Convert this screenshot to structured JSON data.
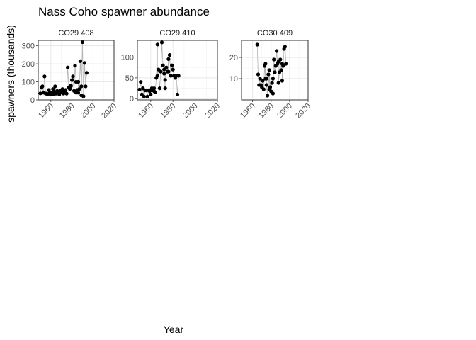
{
  "chart_data": {
    "type": "scatter",
    "title": "Nass Coho spawner abundance",
    "xlabel": "Year",
    "ylabel": "spawners (thousands)",
    "grid": true,
    "connect_points": true,
    "x_ticks": [
      1960,
      1980,
      2000,
      2020
    ],
    "x_range": [
      1948,
      2020
    ],
    "colors": {
      "point": "#000000",
      "line": "#b3b3b3",
      "grid": "#e6e6e6",
      "frame": "#333333"
    },
    "panels": [
      {
        "name": "CO29 408",
        "ylim": [
          0,
          330
        ],
        "y_ticks": [
          0,
          100,
          200,
          300
        ],
        "points": [
          [
            1950,
            36
          ],
          [
            1951,
            68
          ],
          [
            1952,
            75
          ],
          [
            1953,
            40
          ],
          [
            1954,
            130
          ],
          [
            1955,
            35
          ],
          [
            1956,
            35
          ],
          [
            1957,
            30
          ],
          [
            1958,
            55
          ],
          [
            1959,
            40
          ],
          [
            1960,
            30
          ],
          [
            1961,
            40
          ],
          [
            1962,
            30
          ],
          [
            1963,
            45
          ],
          [
            1964,
            35
          ],
          [
            1965,
            35
          ],
          [
            1966,
            50
          ],
          [
            1967,
            40
          ],
          [
            1968,
            30
          ],
          [
            1969,
            50
          ],
          [
            1970,
            45
          ],
          [
            1971,
            60
          ],
          [
            1972,
            35
          ],
          [
            1973,
            50
          ],
          [
            1974,
            40
          ],
          [
            1975,
            35
          ],
          [
            1976,
            180
          ],
          [
            1977,
            70
          ],
          [
            1978,
            60
          ],
          [
            1979,
            80
          ],
          [
            1980,
            110
          ],
          [
            1981,
            130
          ],
          [
            1982,
            50
          ],
          [
            1983,
            190
          ],
          [
            1984,
            100
          ],
          [
            1985,
            55
          ],
          [
            1986,
            40
          ],
          [
            1987,
            60
          ],
          [
            1988,
            215
          ],
          [
            1989,
            75
          ],
          [
            1990,
            320
          ],
          [
            1991,
            20
          ],
          [
            1992,
            205
          ],
          [
            1993,
            75
          ],
          [
            1994,
            150
          ],
          [
            1962,
            60
          ],
          [
            1964,
            75
          ],
          [
            1974,
            55
          ],
          [
            1979,
            75
          ],
          [
            1986,
            100
          ],
          [
            1984,
            40
          ],
          [
            1989,
            25
          ]
        ]
      },
      {
        "name": "CO29 410",
        "ylim": [
          -3,
          140
        ],
        "y_ticks": [
          0,
          50,
          100
        ],
        "points": [
          [
            1950,
            22
          ],
          [
            1951,
            40
          ],
          [
            1952,
            10
          ],
          [
            1953,
            25
          ],
          [
            1954,
            5
          ],
          [
            1955,
            20
          ],
          [
            1956,
            20
          ],
          [
            1957,
            5
          ],
          [
            1958,
            20
          ],
          [
            1959,
            18
          ],
          [
            1960,
            10
          ],
          [
            1961,
            25
          ],
          [
            1962,
            20
          ],
          [
            1963,
            18
          ],
          [
            1964,
            15
          ],
          [
            1965,
            50
          ],
          [
            1966,
            130
          ],
          [
            1967,
            70
          ],
          [
            1968,
            25
          ],
          [
            1969,
            65
          ],
          [
            1970,
            135
          ],
          [
            1971,
            80
          ],
          [
            1972,
            70
          ],
          [
            1973,
            25
          ],
          [
            1974,
            75
          ],
          [
            1975,
            65
          ],
          [
            1976,
            95
          ],
          [
            1977,
            105
          ],
          [
            1978,
            55
          ],
          [
            1979,
            80
          ],
          [
            1980,
            70
          ],
          [
            1981,
            55
          ],
          [
            1982,
            50
          ],
          [
            1983,
            55
          ],
          [
            1984,
            10
          ],
          [
            1985,
            55
          ],
          [
            1966,
            55
          ],
          [
            1972,
            60
          ],
          [
            1976,
            65
          ],
          [
            1963,
            25
          ],
          [
            1960,
            20
          ],
          [
            1973,
            45
          ]
        ]
      },
      {
        "name": "CO30 409",
        "ylim": [
          0,
          28
        ],
        "y_ticks": [
          10,
          20
        ],
        "points": [
          [
            1965,
            26
          ],
          [
            1966,
            12
          ],
          [
            1967,
            7
          ],
          [
            1968,
            10
          ],
          [
            1969,
            7
          ],
          [
            1970,
            6
          ],
          [
            1971,
            9
          ],
          [
            1972,
            5
          ],
          [
            1973,
            16
          ],
          [
            1974,
            10
          ],
          [
            1975,
            10
          ],
          [
            1976,
            2
          ],
          [
            1977,
            12
          ],
          [
            1978,
            5
          ],
          [
            1979,
            6
          ],
          [
            1980,
            4
          ],
          [
            1981,
            8
          ],
          [
            1982,
            10
          ],
          [
            1983,
            19
          ],
          [
            1984,
            13
          ],
          [
            1985,
            16
          ],
          [
            1986,
            23
          ],
          [
            1987,
            17
          ],
          [
            1988,
            18
          ],
          [
            1989,
            13
          ],
          [
            1990,
            19
          ],
          [
            1991,
            14
          ],
          [
            1992,
            17
          ],
          [
            1993,
            16
          ],
          [
            1994,
            24
          ],
          [
            1995,
            25
          ],
          [
            1996,
            17
          ],
          [
            1974,
            17
          ],
          [
            1978,
            14
          ],
          [
            1982,
            3
          ],
          [
            1984,
            13
          ],
          [
            1988,
            8
          ],
          [
            1992,
            9
          ],
          [
            1975,
            7
          ]
        ]
      }
    ]
  }
}
